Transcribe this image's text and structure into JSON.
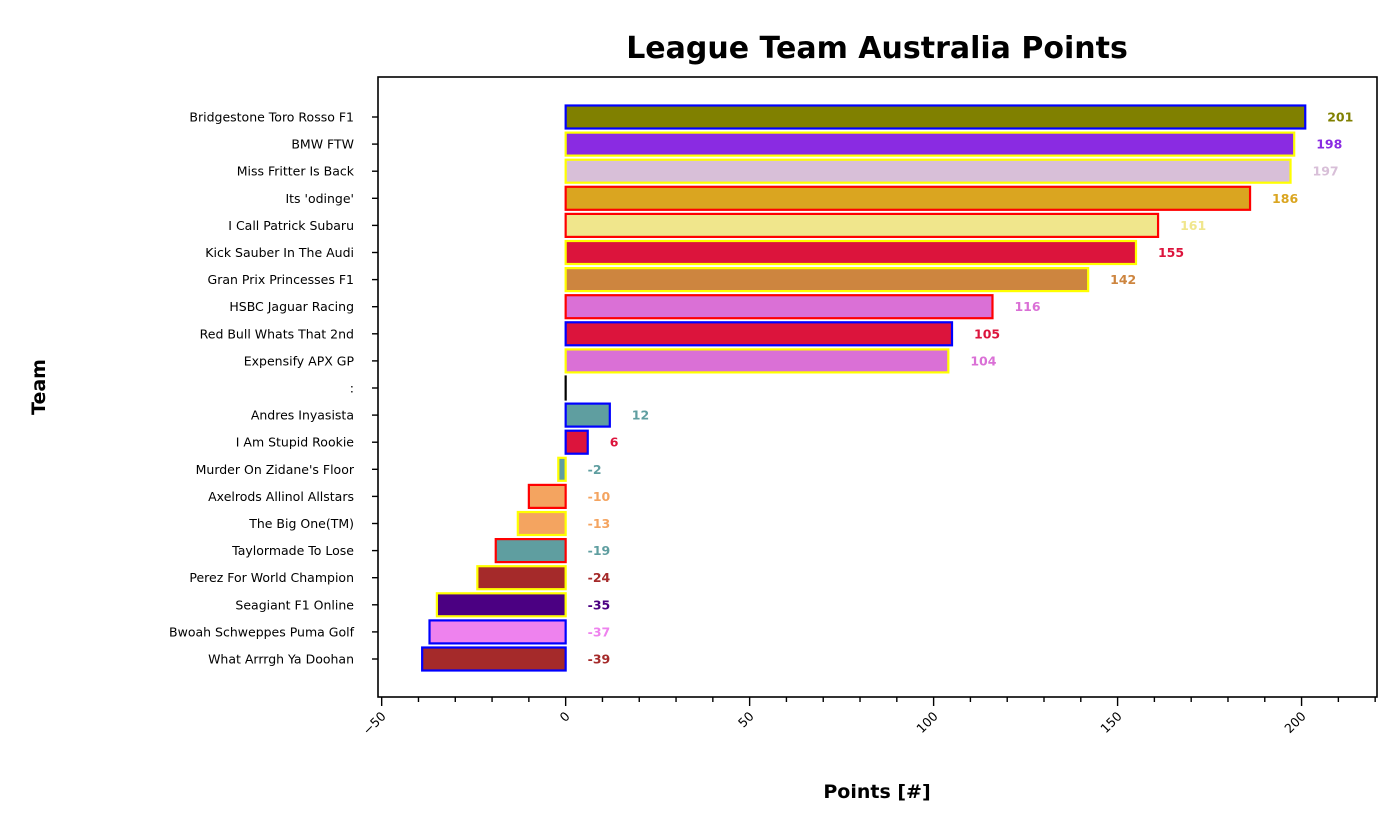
{
  "chart_data": {
    "type": "bar",
    "orientation": "horizontal",
    "title": "League Team Australia Points",
    "xlabel": "Points [#]",
    "ylabel": "Team",
    "xlim": [
      -51,
      220.5
    ],
    "x_major_ticks": [
      -50,
      0,
      50,
      100,
      150,
      200
    ],
    "x_tick_labels": [
      "−50",
      "0",
      "50",
      "100",
      "150",
      "200"
    ],
    "x_minor_tick_step": 10,
    "x_tick_rotation": 45,
    "grid": false,
    "legend": null,
    "categories": [
      "Bridgestone Toro Rosso F1",
      "BMW FTW",
      "Miss Fritter Is Back",
      "Its 'odinge'",
      "I Call Patrick Subaru",
      "Kick Sauber In The Audi",
      "Gran Prix Princesses F1",
      "HSBC Jaguar Racing",
      "Red Bull Whats That 2nd",
      "Expensify APX GP",
      ":",
      "Andres Inyasista",
      "I Am Stupid Rookie",
      "Murder On Zidane's Floor",
      "Axelrods Allinol Allstars",
      "The Big One(TM)",
      "Taylormade To Lose",
      "Perez For World Champion",
      "Seagiant F1 Online",
      "Bwoah Schweppes Puma Golf",
      "What Arrrgh Ya Doohan"
    ],
    "values": [
      201,
      198,
      197,
      186,
      161,
      155,
      142,
      116,
      105,
      104,
      0,
      12,
      6,
      -2,
      -10,
      -13,
      -19,
      -24,
      -35,
      -37,
      -39
    ],
    "value_labels": [
      "201",
      "198",
      "197",
      "186",
      "161",
      "155",
      "142",
      "116",
      "105",
      "104",
      "",
      "12",
      "6",
      "-2",
      "-10",
      "-13",
      "-19",
      "-24",
      "-35",
      "-37",
      "-39"
    ],
    "fill_colors": [
      "#808000",
      "#8a2be2",
      "#d8bfd8",
      "#daa520",
      "#f0e68c",
      "#dc143c",
      "#cd853f",
      "#da70d6",
      "#dc143c",
      "#da70d6",
      "#000000",
      "#5f9ea0",
      "#dc143c",
      "#5f9ea0",
      "#f4a460",
      "#f4a460",
      "#5f9ea0",
      "#a52a2a",
      "#4b0082",
      "#ee82ee",
      "#a52a2a"
    ],
    "edge_colors": [
      "#0000ff",
      "#ffff00",
      "#ffff00",
      "#ff0000",
      "#ff0000",
      "#ffff00",
      "#ffff00",
      "#ff0000",
      "#0000ff",
      "#ffff00",
      "#000000",
      "#0000ff",
      "#0000ff",
      "#ffff00",
      "#ff0000",
      "#ffff00",
      "#ff0000",
      "#ffff00",
      "#ffff00",
      "#0000ff",
      "#0000ff"
    ]
  }
}
